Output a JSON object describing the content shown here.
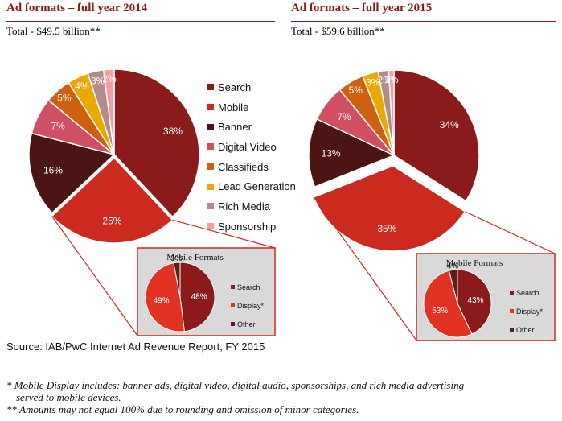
{
  "chart_data": [
    {
      "type": "pie",
      "title": "Ad formats – full year 2014",
      "subtitle": "Total - $49.5 billion**",
      "categories": [
        "Search",
        "Mobile",
        "Banner",
        "Digital Video",
        "Classifieds",
        "Lead Generation",
        "Rich Media",
        "Sponsorship"
      ],
      "values": [
        38,
        25,
        16,
        7,
        5,
        4,
        3,
        2
      ],
      "labels": [
        "38%",
        "25%",
        "16%",
        "7%",
        "5%",
        "4%",
        "3%",
        "2%"
      ],
      "exploded": "Mobile",
      "inset": {
        "title": "Mobile Formats",
        "categories": [
          "Search",
          "Display*",
          "Other"
        ],
        "values": [
          48,
          49,
          3
        ],
        "labels": [
          "48%",
          "49%",
          "3%"
        ]
      }
    },
    {
      "type": "pie",
      "title": "Ad formats – full year 2015",
      "subtitle": "Total - $59.6 billion**",
      "categories": [
        "Search",
        "Mobile",
        "Banner",
        "Digital Video",
        "Classifieds",
        "Lead Generation",
        "Rich Media",
        "Sponsorship"
      ],
      "values": [
        34,
        35,
        13,
        7,
        5,
        3,
        2,
        1
      ],
      "labels": [
        "34%",
        "35%",
        "13%",
        "7%",
        "5%",
        "3%",
        "2%",
        "1%"
      ],
      "exploded": "Mobile",
      "inset": {
        "title": "Mobile Formats",
        "categories": [
          "Search",
          "Display*",
          "Other"
        ],
        "values": [
          43,
          53,
          4
        ],
        "labels": [
          "43%",
          "53%",
          "4%"
        ]
      }
    }
  ],
  "colors": {
    "Search": "#8b1a1a",
    "Mobile": "#cc2a1e",
    "Banner": "#4a1512",
    "Digital Video": "#d04f63",
    "Classifieds": "#d06010",
    "Lead Generation": "#eba800",
    "Rich Media": "#b58a8a",
    "Sponsorship": "#f0a0a0",
    "Display*": "#e23222",
    "Other": "#5b1f1a",
    "accent": "#8b1a1a"
  },
  "legend": {
    "items": [
      "Search",
      "Mobile",
      "Banner",
      "Digital Video",
      "Classifieds",
      "Lead Generation",
      "Rich Media",
      "Sponsorship"
    ]
  },
  "source": "Source: IAB/PwC Internet Ad Revenue Report, FY 2015",
  "notes": [
    "* Mobile Display includes: banner ads, digital video, digital audio, sponsorships, and rich media advertising",
    "served to mobile devices.",
    "** Amounts may not equal 100% due to rounding and omission of minor categories."
  ]
}
